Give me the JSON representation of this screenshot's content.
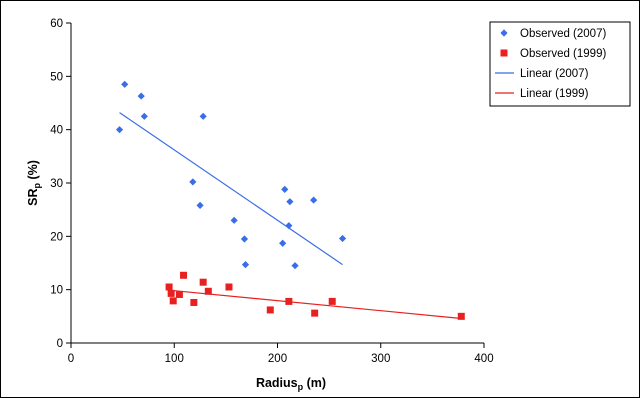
{
  "chart_data": {
    "type": "scatter",
    "xlabel": {
      "main": "Radius",
      "sub": "p",
      "unit": " (m)"
    },
    "ylabel": {
      "main": "SR",
      "sub": "p",
      "unit": " (%)"
    },
    "xlim": [
      0,
      400
    ],
    "ylim": [
      0,
      60
    ],
    "xticks": [
      0,
      100,
      200,
      300,
      400
    ],
    "yticks": [
      0,
      10,
      20,
      30,
      40,
      50,
      60
    ],
    "grid": false,
    "legend_position": "top-right",
    "series": [
      {
        "name": "Observed (2007)",
        "kind": "points",
        "marker": "diamond",
        "color": "#3a6ee8",
        "x": [
          47,
          52,
          68,
          71,
          128,
          118,
          125,
          158,
          168,
          169,
          205,
          207,
          212,
          211,
          217,
          235,
          263
        ],
        "y": [
          40.0,
          48.5,
          46.3,
          42.5,
          42.5,
          30.2,
          25.8,
          23.0,
          19.5,
          14.7,
          18.7,
          28.8,
          26.5,
          22.0,
          14.5,
          26.8,
          19.6
        ]
      },
      {
        "name": "Observed (1999)",
        "kind": "points",
        "marker": "square",
        "color": "#e82020",
        "x": [
          95,
          97,
          99,
          105,
          109,
          119,
          128,
          133,
          153,
          193,
          211,
          236,
          253,
          378
        ],
        "y": [
          10.5,
          9.3,
          7.9,
          9.1,
          12.7,
          7.6,
          11.4,
          9.7,
          10.5,
          6.2,
          7.8,
          5.6,
          7.8,
          5.0
        ]
      },
      {
        "name": "Linear (2007)",
        "kind": "line",
        "color": "#3a6ee8",
        "x": [
          47,
          263
        ],
        "y": [
          43.2,
          14.7
        ]
      },
      {
        "name": "Linear (1999)",
        "kind": "line",
        "color": "#e82020",
        "x": [
          95,
          378
        ],
        "y": [
          9.9,
          4.6
        ]
      }
    ]
  }
}
